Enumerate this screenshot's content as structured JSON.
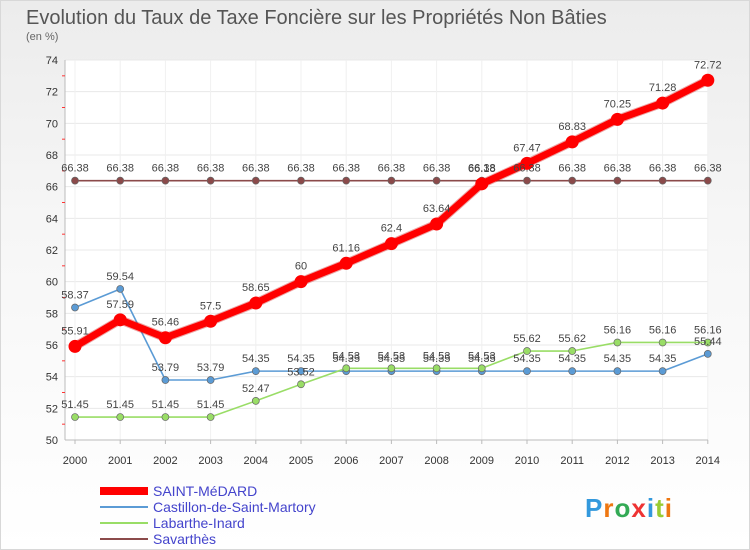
{
  "chart_data": {
    "type": "line",
    "title": "Evolution du Taux de Taxe Foncière sur les Propriétés Non Bâties",
    "subtitle": "(en %)",
    "xlabel": "",
    "ylabel": "(en %)",
    "ylim": [
      50,
      74
    ],
    "yticks": [
      50,
      52,
      54,
      56,
      58,
      60,
      62,
      64,
      66,
      68,
      70,
      72,
      74
    ],
    "categories": [
      "2000",
      "2001",
      "2002",
      "2003",
      "2004",
      "2005",
      "2006",
      "2007",
      "2008",
      "2009",
      "2010",
      "2011",
      "2012",
      "2013",
      "2014"
    ],
    "series": [
      {
        "name": "SAINT-MéDARD",
        "color": "#ff0000",
        "values": [
          55.91,
          57.59,
          56.46,
          57.5,
          58.65,
          60,
          61.16,
          62.4,
          63.64,
          66.18,
          67.47,
          68.83,
          70.25,
          71.28,
          72.72
        ],
        "labels": [
          "55.91",
          "57.59",
          "56.46",
          "57.5",
          "58.65",
          "60",
          "61.16",
          "62.4",
          "63.64",
          "66.18",
          "67.47",
          "68.83",
          "70.25",
          "71.28",
          "72.72"
        ]
      },
      {
        "name": "Castillon-de-Saint-Martory",
        "color": "#5b9bd5",
        "values": [
          58.37,
          59.54,
          53.79,
          53.79,
          54.35,
          54.35,
          54.35,
          54.35,
          54.35,
          54.35,
          54.35,
          54.35,
          54.35,
          54.35,
          55.44
        ],
        "labels": [
          "58.37",
          "59.54",
          "53.79",
          "53.79",
          "54.35",
          "54.35",
          "54.35",
          "54.35",
          "54.35",
          "54.35",
          "54.35",
          "54.35",
          "54.35",
          "54.35",
          "55.44"
        ]
      },
      {
        "name": "Labarthe-Inard",
        "color": "#99dd66",
        "values": [
          51.45,
          51.45,
          51.45,
          51.45,
          52.47,
          53.52,
          54.53,
          54.53,
          54.53,
          54.53,
          55.62,
          55.62,
          56.16,
          56.16,
          56.16
        ],
        "labels": [
          "51.45",
          "51.45",
          "51.45",
          "51.45",
          "52.47",
          "53.52",
          "54.53",
          "54.53",
          "54.53",
          "54.53",
          "55.62",
          "55.62",
          "56.16",
          "56.16",
          "56.16"
        ]
      },
      {
        "name": "Savarthès",
        "color": "#8b4a4a",
        "values": [
          66.38,
          66.38,
          66.38,
          66.38,
          66.38,
          66.38,
          66.38,
          66.38,
          66.38,
          66.38,
          66.38,
          66.38,
          66.38,
          66.38,
          66.38
        ],
        "labels": [
          "66.38",
          "66.38",
          "66.38",
          "66.38",
          "66.38",
          "66.38",
          "66.38",
          "66.38",
          "66.38",
          "66.38",
          "66.38",
          "66.38",
          "66.38",
          "66.38",
          "66.38"
        ]
      }
    ],
    "legend_position": "bottom-left"
  },
  "logo": {
    "letters": [
      "P",
      "r",
      "o",
      "x",
      "i",
      "t",
      "i"
    ],
    "colors": [
      "#3399dd",
      "#ee7711",
      "#33aa55",
      "#ee3333",
      "#3399dd",
      "#99cc33",
      "#ee7711"
    ]
  }
}
